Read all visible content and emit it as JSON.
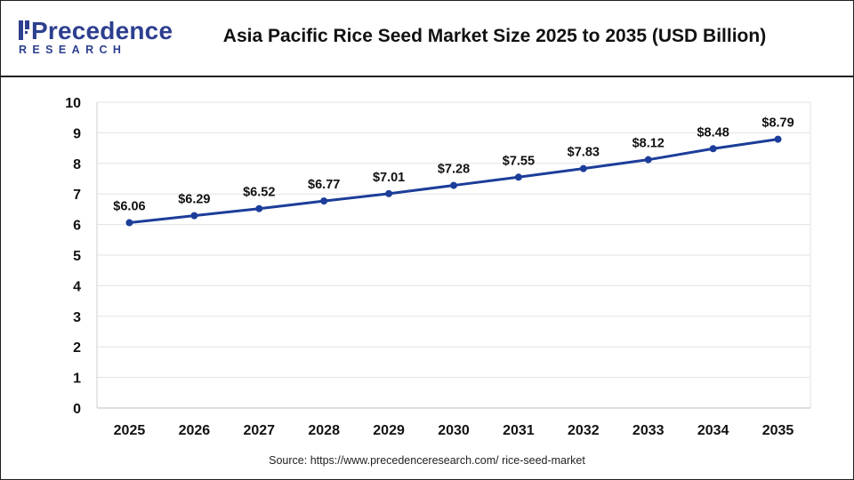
{
  "header": {
    "logo_main": "Precedence",
    "logo_sub": "RESEARCH",
    "title": "Asia Pacific Rice Seed Market Size 2025 to 2035 (USD Billion)"
  },
  "source": "Source: https://www.precedenceresearch.com/ rice-seed-market",
  "colors": {
    "line": "#1c3d99",
    "grid": "#e3e3e3",
    "brand": "#2d3f8f",
    "text": "#111111"
  },
  "chart_data": {
    "type": "line",
    "title": "Asia Pacific Rice Seed Market Size 2025 to 2035 (USD Billion)",
    "xlabel": "",
    "ylabel": "",
    "categories": [
      "2025",
      "2026",
      "2027",
      "2028",
      "2029",
      "2030",
      "2031",
      "2032",
      "2033",
      "2034",
      "2035"
    ],
    "values": [
      6.06,
      6.29,
      6.52,
      6.77,
      7.01,
      7.28,
      7.55,
      7.83,
      8.12,
      8.48,
      8.79
    ],
    "labels": [
      "$6.06",
      "$6.29",
      "$6.52",
      "$6.77",
      "$7.01",
      "$7.28",
      "$7.55",
      "$7.83",
      "$8.12",
      "$8.48",
      "$8.79"
    ],
    "ylim": [
      0,
      10
    ],
    "yticks": [
      "0",
      "1",
      "2",
      "3",
      "4",
      "5",
      "6",
      "7",
      "8",
      "9",
      "10"
    ],
    "grid": true,
    "legend": "none"
  }
}
